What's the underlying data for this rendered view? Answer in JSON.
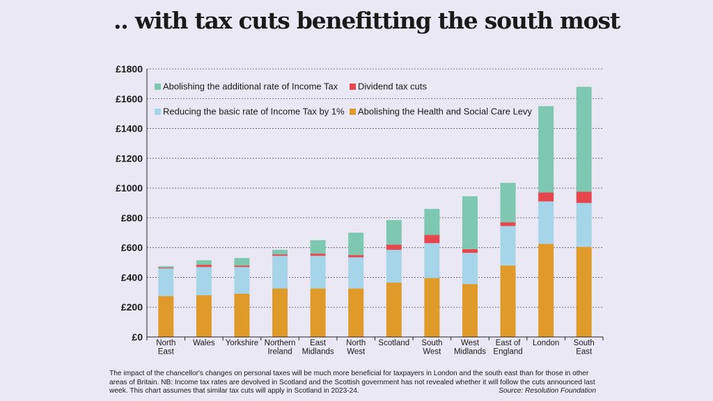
{
  "title": ".. with tax cuts benefitting the south most",
  "caption": "The impact of the chancellor's changes on personal taxes will be much more beneficial for taxpayers in London and the south east than for those in other areas of Britain. NB: Income tax rates are devolved in Scotland and the Scottish government has not revealed whether it will follow the cuts announced last week. This chart assumes that similar tax cuts will apply in Scotland in 2023-24.",
  "source": "Source: Resolution Foundation",
  "chart_data": {
    "type": "bar",
    "stacked": true,
    "grid": true,
    "legend_position": "top-left",
    "ylim": [
      0,
      1800
    ],
    "yticks": [
      "£0",
      "£200",
      "£400",
      "£600",
      "£800",
      "£1000",
      "£1200",
      "£1400",
      "£1600",
      "£1800"
    ],
    "categories": [
      [
        "North",
        "East"
      ],
      [
        "Wales"
      ],
      [
        "Yorkshire"
      ],
      [
        "Northern",
        "Ireland"
      ],
      [
        "East",
        "Midlands"
      ],
      [
        "North",
        "West"
      ],
      [
        "Scotland"
      ],
      [
        "South",
        "West"
      ],
      [
        "West",
        "Midlands"
      ],
      [
        "East of",
        "England"
      ],
      [
        "London"
      ],
      [
        "South",
        "East"
      ]
    ],
    "series": [
      {
        "name": "Abolishing the Health and Social Care Levy",
        "color": "#e09a2a",
        "values": [
          275,
          280,
          290,
          325,
          325,
          325,
          365,
          395,
          355,
          480,
          625,
          605
        ]
      },
      {
        "name": "Reducing the basic rate of Income Tax by 1%",
        "color": "#a6d4e8",
        "values": [
          185,
          190,
          180,
          220,
          220,
          210,
          220,
          235,
          210,
          265,
          285,
          295
        ]
      },
      {
        "name": "Dividend tax cuts",
        "color": "#e5474d",
        "values": [
          5,
          15,
          10,
          10,
          15,
          15,
          35,
          55,
          25,
          25,
          60,
          75
        ]
      },
      {
        "name": "Abolishing the additional rate of Income Tax",
        "color": "#7ec8b1",
        "values": [
          10,
          30,
          50,
          30,
          90,
          150,
          165,
          175,
          355,
          265,
          580,
          705
        ]
      }
    ],
    "legend": [
      {
        "series": 3,
        "row": 0,
        "col": 0
      },
      {
        "series": 2,
        "row": 0,
        "col": 1
      },
      {
        "series": 1,
        "row": 1,
        "col": 0
      },
      {
        "series": 0,
        "row": 1,
        "col": 1
      }
    ]
  }
}
